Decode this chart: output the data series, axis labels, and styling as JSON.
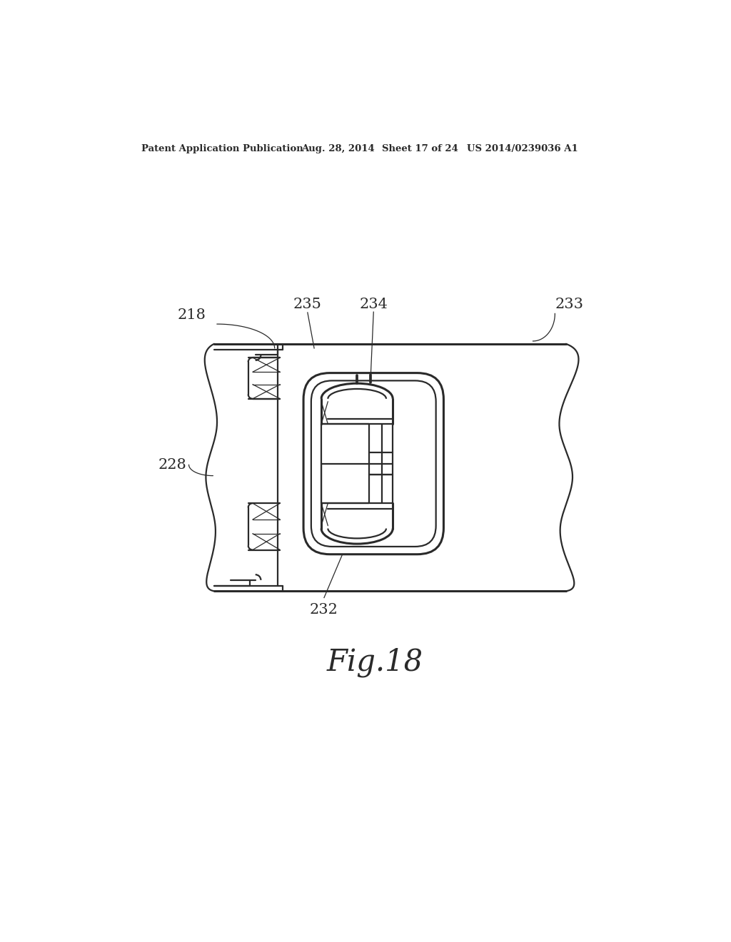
{
  "bg_color": "#ffffff",
  "line_color": "#2a2a2a",
  "header_text": "Patent Application Publication",
  "header_date": "Aug. 28, 2014",
  "header_sheet": "Sheet 17 of 24",
  "header_patent": "US 2014/0239036 A1",
  "fig_label": "Fig.18",
  "lw_main": 1.6,
  "lw_thin": 0.9,
  "lw_thick": 2.2
}
